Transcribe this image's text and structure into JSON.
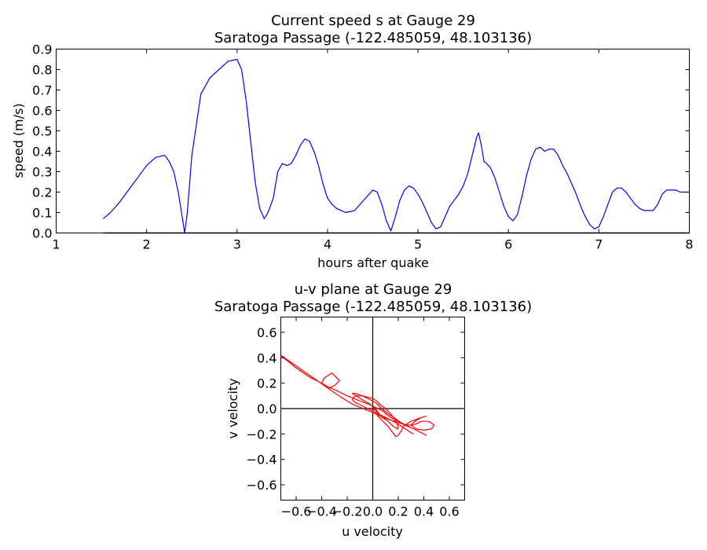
{
  "chart_data": [
    {
      "type": "line",
      "title": "Current speed s at Gauge 29",
      "subtitle": "Saratoga Passage  (-122.485059, 48.103136)",
      "xlabel": "hours after quake",
      "ylabel": "speed (m/s)",
      "xlim": [
        1,
        8
      ],
      "ylim": [
        0.0,
        0.9
      ],
      "xticks": [
        "1",
        "2",
        "3",
        "4",
        "5",
        "6",
        "7",
        "8"
      ],
      "yticks": [
        "0.0",
        "0.1",
        "0.2",
        "0.3",
        "0.4",
        "0.5",
        "0.6",
        "0.7",
        "0.8",
        "0.9"
      ],
      "grid": false,
      "colors": {
        "speed": "#0000ff",
        "baseline": "#000000"
      },
      "baseline": {
        "x": [
          1.52,
          8.0
        ],
        "y": [
          0.0,
          0.0
        ]
      },
      "series": [
        {
          "x": [
            1.52,
            1.6,
            1.7,
            1.8,
            1.9,
            2.0,
            2.1,
            2.2,
            2.25,
            2.3,
            2.35,
            2.4,
            2.42,
            2.45,
            2.5,
            2.6,
            2.7,
            2.8,
            2.9,
            3.0,
            3.05,
            3.1,
            3.15,
            3.2,
            3.25,
            3.3,
            3.33,
            3.35,
            3.4,
            3.45,
            3.5,
            3.55,
            3.6,
            3.65,
            3.7,
            3.75,
            3.8,
            3.85,
            3.9,
            3.95,
            4.0,
            4.05,
            4.1,
            4.15,
            4.2,
            4.3,
            4.4,
            4.5,
            4.55,
            4.6,
            4.65,
            4.7,
            4.75,
            4.8,
            4.85,
            4.9,
            4.95,
            5.0,
            5.05,
            5.1,
            5.15,
            5.2,
            5.25,
            5.3,
            5.35,
            5.4,
            5.45,
            5.5,
            5.55,
            5.6,
            5.65,
            5.67,
            5.7,
            5.73,
            5.76,
            5.8,
            5.85,
            5.9,
            5.95,
            6.0,
            6.05,
            6.1,
            6.15,
            6.2,
            6.25,
            6.3,
            6.35,
            6.4,
            6.45,
            6.5,
            6.55,
            6.6,
            6.65,
            6.7,
            6.75,
            6.8,
            6.85,
            6.9,
            6.95,
            7.0,
            7.05,
            7.1,
            7.15,
            7.2,
            7.25,
            7.3,
            7.35,
            7.4,
            7.45,
            7.5,
            7.55,
            7.6,
            7.65,
            7.7,
            7.75,
            7.8,
            7.85,
            7.9,
            7.95,
            8.0
          ],
          "values": [
            0.07,
            0.1,
            0.15,
            0.21,
            0.27,
            0.33,
            0.37,
            0.38,
            0.35,
            0.3,
            0.2,
            0.06,
            0.0,
            0.1,
            0.38,
            0.68,
            0.76,
            0.8,
            0.84,
            0.85,
            0.8,
            0.65,
            0.45,
            0.25,
            0.12,
            0.07,
            0.09,
            0.11,
            0.17,
            0.3,
            0.34,
            0.33,
            0.34,
            0.38,
            0.43,
            0.46,
            0.45,
            0.4,
            0.33,
            0.24,
            0.17,
            0.14,
            0.12,
            0.11,
            0.1,
            0.11,
            0.16,
            0.21,
            0.2,
            0.14,
            0.06,
            0.01,
            0.08,
            0.16,
            0.21,
            0.23,
            0.22,
            0.19,
            0.15,
            0.1,
            0.05,
            0.02,
            0.03,
            0.08,
            0.13,
            0.16,
            0.19,
            0.23,
            0.29,
            0.38,
            0.47,
            0.49,
            0.43,
            0.35,
            0.34,
            0.32,
            0.27,
            0.2,
            0.13,
            0.08,
            0.06,
            0.09,
            0.18,
            0.28,
            0.36,
            0.41,
            0.42,
            0.4,
            0.41,
            0.41,
            0.38,
            0.33,
            0.29,
            0.24,
            0.19,
            0.13,
            0.08,
            0.04,
            0.02,
            0.03,
            0.08,
            0.14,
            0.2,
            0.22,
            0.22,
            0.2,
            0.17,
            0.14,
            0.12,
            0.11,
            0.11,
            0.11,
            0.14,
            0.19,
            0.21,
            0.21,
            0.21,
            0.2,
            0.2,
            0.2
          ]
        }
      ]
    },
    {
      "type": "line",
      "title": "u-v plane at Gauge 29",
      "subtitle": "Saratoga Passage  (-122.485059, 48.103136)",
      "xlabel": "u velocity",
      "ylabel": "v velocity",
      "xlim": [
        -0.72,
        0.72
      ],
      "ylim": [
        -0.72,
        0.72
      ],
      "xticks": [
        "−0.6",
        "−0.4",
        "−0.2",
        "0.0",
        "0.2",
        "0.4",
        "0.6"
      ],
      "yticks": [
        "−0.6",
        "−0.4",
        "−0.2",
        "0.0",
        "0.2",
        "0.4",
        "0.6"
      ],
      "grid": false,
      "reference_lines": [
        "u = 0",
        "v = 0"
      ],
      "colors": {
        "trajectory": "#ff0000",
        "reference": "#000000"
      },
      "series": [
        {
          "u": [
            0.0,
            0.04,
            0.06,
            0.05,
            0.02,
            -0.03,
            -0.1,
            -0.16,
            -0.14,
            -0.08,
            -0.02,
            0.03,
            0.07,
            0.12,
            0.18,
            0.22,
            0.25,
            0.3,
            0.34,
            0.38,
            0.42,
            0.36,
            0.28,
            0.2,
            0.14,
            0.1,
            0.08,
            0.04,
            -0.02,
            -0.1,
            -0.2,
            -0.28,
            -0.35,
            -0.4,
            -0.38,
            -0.32,
            -0.26,
            -0.3,
            -0.35,
            -0.4,
            -0.5,
            -0.6,
            -0.7,
            -0.72,
            -0.65,
            -0.55,
            -0.45,
            -0.35,
            -0.25,
            -0.15,
            -0.05,
            0.02,
            0.08,
            0.14,
            0.2,
            0.26,
            0.3,
            0.34,
            0.38,
            0.44,
            0.48,
            0.46,
            0.4,
            0.34,
            0.3,
            0.33,
            0.38,
            0.42,
            0.38,
            0.3,
            0.24,
            0.22,
            0.2,
            0.18,
            0.15,
            0.12,
            0.08,
            0.04,
            0.02,
            0.03,
            0.06,
            0.09,
            0.12,
            0.14,
            0.16,
            0.18,
            0.19,
            0.2,
            0.19,
            0.17,
            0.14,
            0.1,
            0.06,
            0.03,
            0.0,
            -0.04,
            -0.08,
            -0.12,
            -0.15,
            -0.16,
            -0.14,
            -0.1,
            -0.06,
            -0.02,
            0.02,
            0.06,
            0.1,
            0.14,
            0.18,
            0.21,
            0.24,
            0.27,
            0.3,
            0.32
          ],
          "v": [
            0.0,
            -0.03,
            -0.06,
            -0.04,
            0.0,
            0.04,
            0.08,
            0.12,
            0.12,
            0.1,
            0.07,
            0.04,
            0.0,
            -0.04,
            -0.08,
            -0.11,
            -0.13,
            -0.15,
            -0.17,
            -0.19,
            -0.21,
            -0.18,
            -0.14,
            -0.1,
            -0.07,
            -0.04,
            -0.02,
            0.0,
            0.03,
            0.06,
            0.1,
            0.14,
            0.17,
            0.2,
            0.24,
            0.28,
            0.22,
            0.18,
            0.16,
            0.2,
            0.25,
            0.32,
            0.4,
            0.42,
            0.37,
            0.3,
            0.23,
            0.16,
            0.09,
            0.03,
            -0.01,
            -0.04,
            -0.07,
            -0.09,
            -0.11,
            -0.13,
            -0.13,
            -0.12,
            -0.1,
            -0.1,
            -0.13,
            -0.16,
            -0.17,
            -0.16,
            -0.13,
            -0.1,
            -0.07,
            -0.06,
            -0.07,
            -0.1,
            -0.14,
            -0.18,
            -0.21,
            -0.22,
            -0.18,
            -0.14,
            -0.1,
            -0.06,
            -0.03,
            -0.04,
            -0.06,
            -0.08,
            -0.1,
            -0.12,
            -0.14,
            -0.15,
            -0.16,
            -0.15,
            -0.12,
            -0.08,
            -0.04,
            0.0,
            0.03,
            0.06,
            0.08,
            0.09,
            0.1,
            0.1,
            0.09,
            0.07,
            0.05,
            0.03,
            0.01,
            -0.01,
            -0.03,
            -0.05,
            -0.07,
            -0.09,
            -0.11,
            -0.13,
            -0.15,
            -0.17,
            -0.19,
            -0.2
          ]
        }
      ]
    }
  ]
}
